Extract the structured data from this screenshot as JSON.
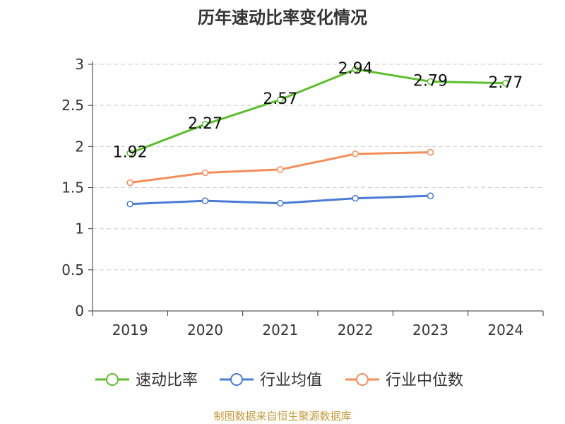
{
  "chart_data": {
    "type": "line",
    "title": "历年速动比率变化情况",
    "categories": [
      "2019",
      "2020",
      "2021",
      "2022",
      "2023",
      "2024"
    ],
    "ylim": [
      0,
      3
    ],
    "yticks": [
      "0",
      "0.5",
      "1",
      "1.5",
      "2",
      "2.5",
      "3"
    ],
    "grid": true,
    "legend_position": "bottom",
    "series": [
      {
        "name": "速动比率",
        "color": "#5bbf2a",
        "values": [
          1.92,
          2.27,
          2.57,
          2.94,
          2.79,
          2.77
        ],
        "labels": [
          "1.92",
          "2.27",
          "2.57",
          "2.94",
          "2.79",
          "2.77"
        ],
        "show_labels": true
      },
      {
        "name": "行业均值",
        "color": "#4a7bd6",
        "values": [
          1.3,
          1.34,
          1.31,
          1.37,
          1.4,
          null
        ],
        "labels": [],
        "show_labels": false
      },
      {
        "name": "行业中位数",
        "color": "#f58d57",
        "values": [
          1.56,
          1.68,
          1.72,
          1.91,
          1.93,
          null
        ],
        "labels": [],
        "show_labels": false
      }
    ],
    "source": "制图数据来自恒生聚源数据库"
  },
  "colors": {
    "title": "#333333",
    "axis": "#333333",
    "grid": "#cccccc",
    "source": "#c49a3a"
  }
}
